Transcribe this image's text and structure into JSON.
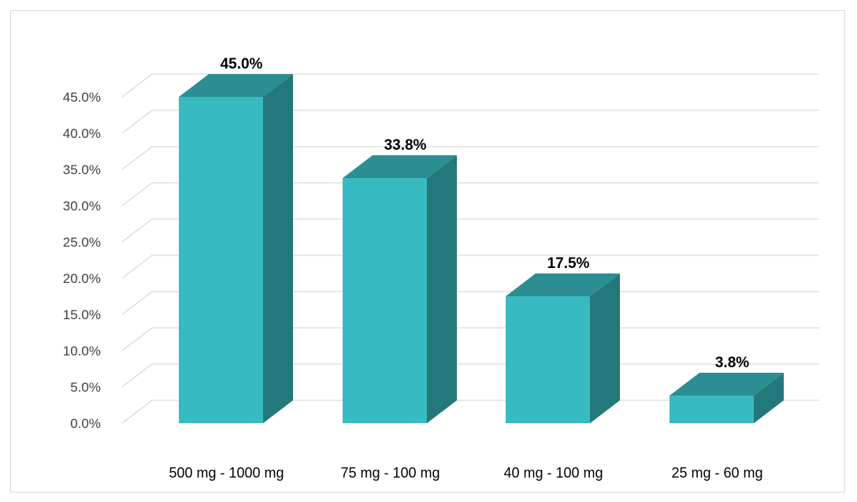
{
  "chart_data": {
    "type": "bar",
    "style": "3d-column",
    "title": "",
    "xlabel": "",
    "ylabel": "",
    "categories": [
      "500 mg - 1000 mg",
      "75 mg - 100 mg",
      "40 mg - 100 mg",
      "25 mg - 60 mg"
    ],
    "values": [
      45.0,
      33.8,
      17.5,
      3.8
    ],
    "data_labels": [
      "45.0%",
      "33.8%",
      "17.5%",
      "3.8%"
    ],
    "ylim": [
      0,
      45
    ],
    "yticks": [
      0,
      5,
      10,
      15,
      20,
      25,
      30,
      35,
      40,
      45
    ],
    "ytick_labels": [
      "0.0%",
      "5.0%",
      "10.0%",
      "15.0%",
      "20.0%",
      "25.0%",
      "30.0%",
      "35.0%",
      "40.0%",
      "45.0%"
    ],
    "grid": true,
    "legend": "none",
    "colors": {
      "front": "#38bac2",
      "side": "#23787b",
      "top": "#2c8e92",
      "grid": "#d9d9d9",
      "tick_text": "#404040"
    }
  }
}
